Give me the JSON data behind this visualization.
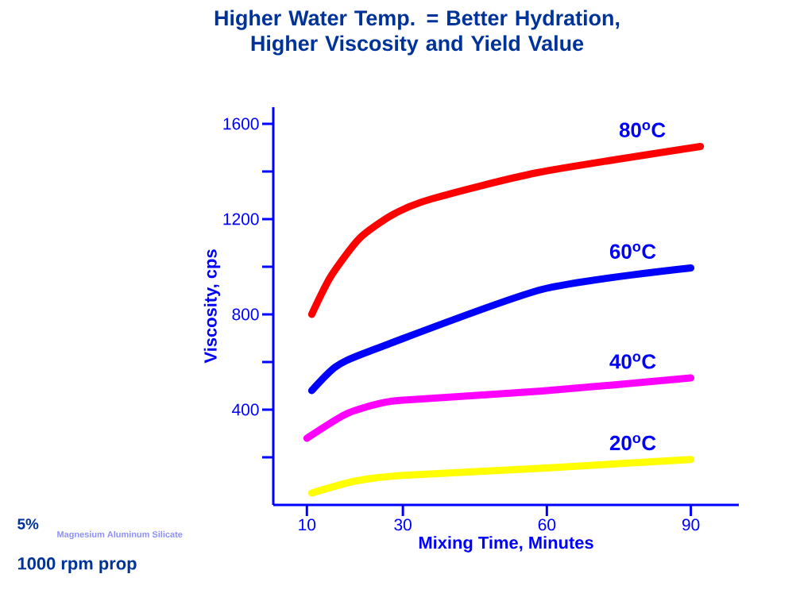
{
  "chart_data": {
    "type": "line",
    "title": "Higher Water Temp. = Better Hydration, Higher Viscosity and Yield Value",
    "xlabel": "Mixing Time, Minutes",
    "ylabel": "Viscosity, cps",
    "xlim": [
      3,
      100
    ],
    "ylim": [
      0,
      1670
    ],
    "xticks": [
      10,
      30,
      60,
      90
    ],
    "yticks": [
      {
        "value": 200,
        "label": null
      },
      400,
      {
        "value": 600,
        "label": null
      },
      800,
      {
        "value": 1000,
        "label": null
      },
      1200,
      {
        "value": 1400,
        "label": null
      },
      1600
    ],
    "legend": false,
    "marker": "none",
    "line_style": "solid",
    "grid": false,
    "series": [
      {
        "name": "80$^{o}$C",
        "color": "#ff0000",
        "x": [
          11,
          15,
          21,
          28,
          36,
          58,
          92
        ],
        "values": [
          800,
          960,
          1120,
          1220,
          1285,
          1395,
          1505
        ]
      },
      {
        "name": "60$^{o}$C",
        "color": "#0000ff",
        "x": [
          11,
          16,
          23,
          59,
          90
        ],
        "values": [
          480,
          580,
          645,
          905,
          995
        ]
      },
      {
        "name": "40$^{o}$C",
        "color": "#ff00ff",
        "x": [
          10,
          18,
          25,
          30,
          59,
          90
        ],
        "values": [
          280,
          380,
          425,
          440,
          478,
          533
        ]
      },
      {
        "name": "20$^{o}$C",
        "color": "#ffff00",
        "x": [
          11,
          20,
          30,
          59,
          90
        ],
        "values": [
          50,
          100,
          124,
          154,
          191
        ]
      }
    ],
    "annotations": [
      "5%",
      "Magnesium Aluminum Silicate",
      "1000 rpm prop"
    ]
  }
}
